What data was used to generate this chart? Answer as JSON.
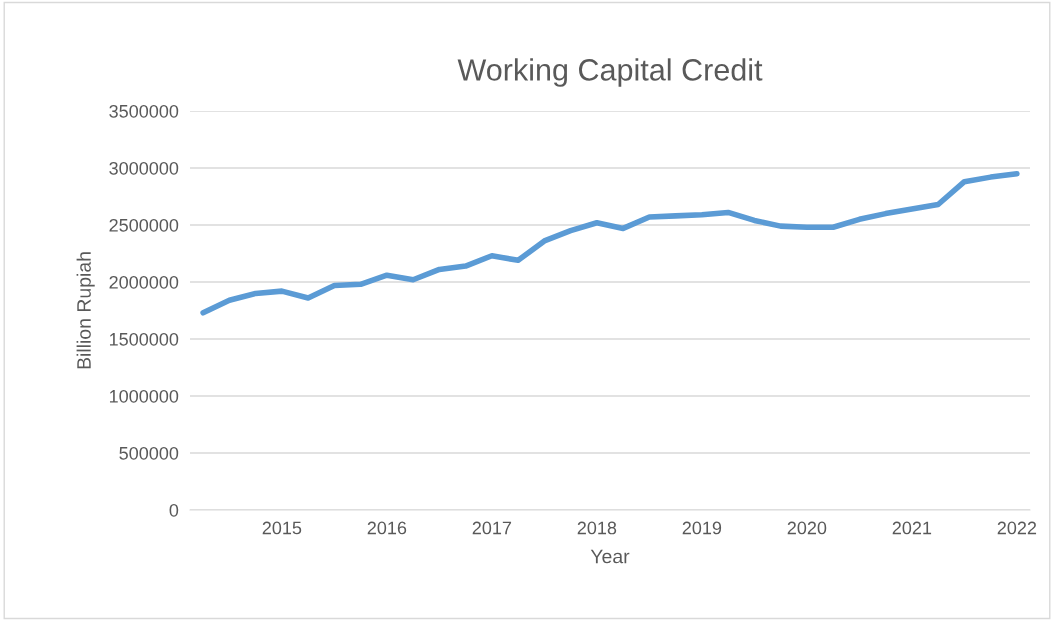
{
  "chart_data": {
    "type": "line",
    "title": "Working Capital Credit",
    "xlabel": "Year",
    "ylabel": "Billion Rupiah",
    "categories": [
      null,
      null,
      null,
      "2015",
      null,
      null,
      null,
      "2016",
      null,
      null,
      null,
      "2017",
      null,
      null,
      null,
      "2018",
      null,
      null,
      null,
      "2019",
      null,
      null,
      null,
      "2020",
      null,
      null,
      null,
      "2021",
      null,
      null,
      null,
      "2022"
    ],
    "series": [
      {
        "color": "#5b9bd5",
        "values": [
          1730000,
          1840000,
          1900000,
          1920000,
          1860000,
          1970000,
          1980000,
          2060000,
          2020000,
          2110000,
          2140000,
          2230000,
          2190000,
          2360000,
          2450000,
          2520000,
          2470000,
          2570000,
          2580000,
          2590000,
          2610000,
          2540000,
          2490000,
          2480000,
          2480000,
          2550000,
          2600000,
          2640000,
          2680000,
          2880000,
          2920000,
          2950000
        ]
      }
    ],
    "ylim": [
      0,
      3500000
    ],
    "yticks": [
      0,
      500000,
      1000000,
      1500000,
      2000000,
      2500000,
      3000000,
      3500000
    ],
    "grid": "y",
    "marker": "none",
    "line_style": "solid"
  }
}
